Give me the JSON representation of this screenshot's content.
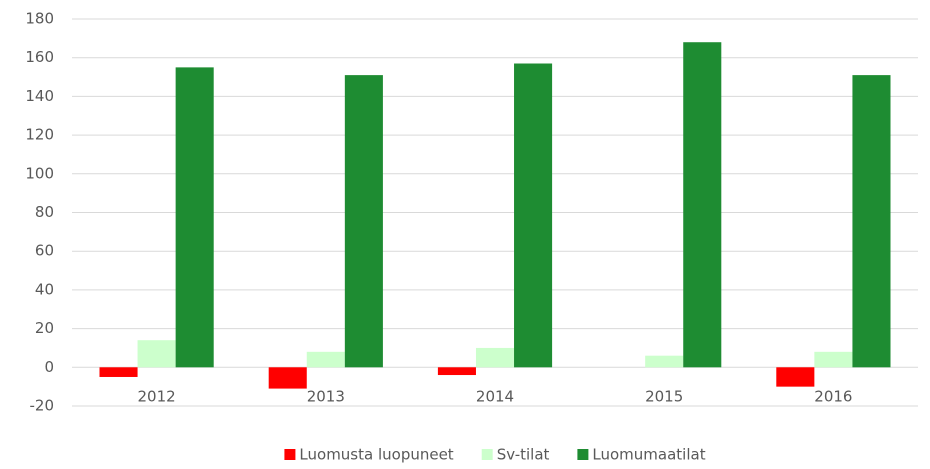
{
  "chart_data": {
    "type": "bar",
    "categories": [
      "2012",
      "2013",
      "2014",
      "2015",
      "2016"
    ],
    "series": [
      {
        "name": "Luomusta luopuneet",
        "color": "#ff0000",
        "values": [
          -5,
          -11,
          -4,
          0,
          -10
        ]
      },
      {
        "name": "Sv-tilat",
        "color": "#ccffcc",
        "values": [
          14,
          8,
          10,
          6,
          8
        ]
      },
      {
        "name": "Luomumaatilat",
        "color": "#1e8c32",
        "values": [
          155,
          151,
          157,
          168,
          151
        ]
      }
    ],
    "ylim": [
      -20,
      180
    ],
    "yticks": [
      -20,
      0,
      20,
      40,
      60,
      80,
      100,
      120,
      140,
      160,
      180
    ],
    "grid": true,
    "legend": "bottom"
  }
}
